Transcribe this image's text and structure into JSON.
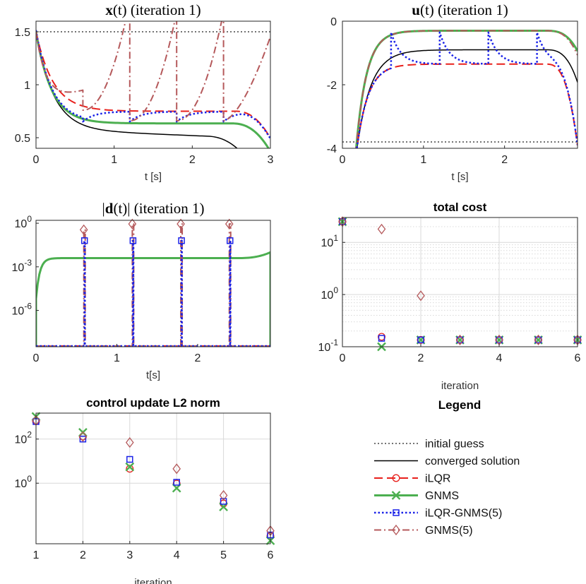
{
  "colors": {
    "initial": "#222222",
    "converged": "#000000",
    "ilqr": "#e8201c",
    "gnms": "#4caf50",
    "ilqr_gnms5": "#1a22e8",
    "gnms5": "#b5595b",
    "grid": "#d9d9d9"
  },
  "chart_data": [
    {
      "id": "x",
      "type": "line",
      "title_bold": "x",
      "title_rest": "(t) (iteration 1)",
      "xlabel": "t [s]",
      "ylabel": "",
      "xlim": [
        0,
        3
      ],
      "ylim": [
        0.4,
        1.6
      ],
      "xticks": [
        0,
        1,
        2,
        3
      ],
      "yticks": [
        0.5,
        1,
        1.5
      ],
      "ytick_labels": [
        "0.5",
        "1",
        "1.5"
      ],
      "initial_guess": 1.5,
      "x0": 1.5,
      "converged_plateau": 0.58,
      "gnms_plateau": 0.635,
      "ilqr_plateau": 0.75,
      "shoot_times": [
        0.6,
        1.2,
        1.8,
        2.4
      ]
    },
    {
      "id": "u",
      "type": "line",
      "title_bold": "u",
      "title_rest": "(t) (iteration 1)",
      "xlabel": "t [s]",
      "ylabel": "",
      "xlim": [
        0,
        2.9
      ],
      "ylim": [
        -4,
        0
      ],
      "xticks": [
        0,
        1,
        2
      ],
      "yticks": [
        -4,
        -2,
        0
      ],
      "ytick_labels": [
        "-4",
        "-2",
        "0"
      ],
      "initial_guess": -3.8,
      "converged_plateau": -0.9,
      "ilqr_plateau": -1.35,
      "gnms_plateau": -0.3,
      "shoot_times": [
        0.6,
        1.2,
        1.8,
        2.4
      ]
    },
    {
      "id": "d",
      "type": "line",
      "title_rest": "| (iteration 1)",
      "title_bold": "d",
      "title_pre": "|",
      "title_mid": "(t)",
      "xlabel": "t[s]",
      "ylabel": "",
      "yscale": "log",
      "xlim": [
        0,
        2.9
      ],
      "ylim_exp": [
        -8.5,
        0.2
      ],
      "xticks": [
        0,
        1,
        2
      ],
      "ytick_exps": [
        0,
        -3,
        -6
      ],
      "ytick_bases": [
        "10",
        "10",
        "10"
      ],
      "ytick_sups": [
        "0",
        "-3",
        "-6"
      ],
      "gnms_level_exp": -2.4,
      "gnms_end_exp": -2.0,
      "shoot_times": [
        0.6,
        1.2,
        1.8,
        2.4
      ],
      "ilqr_gnms5_defects_exp": [
        -1.2,
        -1.2,
        -1.2,
        -1.2
      ],
      "gnms5_defects_exp": [
        -0.45,
        -0.05,
        -0.05,
        -0.05
      ]
    },
    {
      "id": "cost",
      "type": "scatter",
      "title": "total cost",
      "xlabel": "iteration",
      "ylabel": "",
      "yscale": "log",
      "xlim": [
        0,
        6
      ],
      "ylim": [
        0.1,
        30
      ],
      "xticks": [
        0,
        2,
        4,
        6
      ],
      "ytick_values": [
        0.1,
        1,
        10
      ],
      "ytick_bases": [
        "10",
        "10",
        "10"
      ],
      "ytick_sups": [
        "-1",
        "0",
        "1"
      ],
      "iterations": [
        0,
        1,
        2,
        3,
        4,
        5,
        6
      ],
      "series": [
        {
          "name": "iLQR",
          "key": "ilqr",
          "marker": "circle",
          "values": [
            25,
            0.155,
            0.135,
            0.135,
            0.135,
            0.135,
            0.135
          ]
        },
        {
          "name": "GNMS",
          "key": "gnms",
          "marker": "x",
          "values": [
            25,
            0.1,
            0.135,
            0.135,
            0.135,
            0.135,
            0.135
          ]
        },
        {
          "name": "iLQR-GNMS(5)",
          "key": "ilqr_gnms5",
          "marker": "square",
          "values": [
            25,
            0.145,
            0.135,
            0.135,
            0.135,
            0.135,
            0.135
          ]
        },
        {
          "name": "GNMS(5)",
          "key": "gnms5",
          "marker": "diamond",
          "values": [
            25,
            18,
            0.95,
            0.135,
            0.135,
            0.135,
            0.135
          ]
        }
      ]
    },
    {
      "id": "l2",
      "type": "scatter",
      "title": "control update L2 norm",
      "xlabel": "iteration",
      "ylabel": "",
      "yscale": "log",
      "xlim": [
        1,
        6
      ],
      "ylim": [
        0.0018,
        1500
      ],
      "xticks": [
        1,
        2,
        3,
        4,
        5,
        6
      ],
      "ytick_values": [
        1,
        100
      ],
      "ytick_bases": [
        "10",
        "10"
      ],
      "ytick_sups": [
        "0",
        "2"
      ],
      "iterations": [
        1,
        2,
        3,
        4,
        5,
        6
      ],
      "series": [
        {
          "name": "iLQR",
          "key": "ilqr",
          "marker": "circle",
          "values": [
            650,
            130,
            4.5,
            0.95,
            0.12,
            0.004
          ]
        },
        {
          "name": "GNMS",
          "key": "gnms",
          "marker": "x",
          "values": [
            1050,
            200,
            5.5,
            0.6,
            0.085,
            0.0025
          ]
        },
        {
          "name": "iLQR-GNMS(5)",
          "key": "ilqr_gnms5",
          "marker": "square",
          "values": [
            620,
            100,
            12,
            1.1,
            0.15,
            0.0045
          ]
        },
        {
          "name": "GNMS(5)",
          "key": "gnms5",
          "marker": "diamond",
          "values": [
            700,
            130,
            70,
            4.5,
            0.28,
            0.007
          ]
        }
      ]
    }
  ],
  "legend": {
    "title": "Legend",
    "entries": [
      {
        "label": "initial guess",
        "key": "initial",
        "dash": "2,3",
        "width": 1.3,
        "marker": "none"
      },
      {
        "label": "converged solution",
        "key": "converged",
        "dash": "",
        "width": 1.6,
        "marker": "none"
      },
      {
        "label": "iLQR",
        "key": "ilqr",
        "dash": "12,6",
        "width": 2,
        "marker": "circle"
      },
      {
        "label": "GNMS",
        "key": "gnms",
        "dash": "",
        "width": 3,
        "marker": "x"
      },
      {
        "label": "iLQR-GNMS(5)",
        "key": "ilqr_gnms5",
        "dash": "2.5,3",
        "width": 2.5,
        "marker": "square"
      },
      {
        "label": "GNMS(5)",
        "key": "gnms5",
        "dash": "10,4,2,4",
        "width": 2,
        "marker": "diamond"
      }
    ]
  }
}
